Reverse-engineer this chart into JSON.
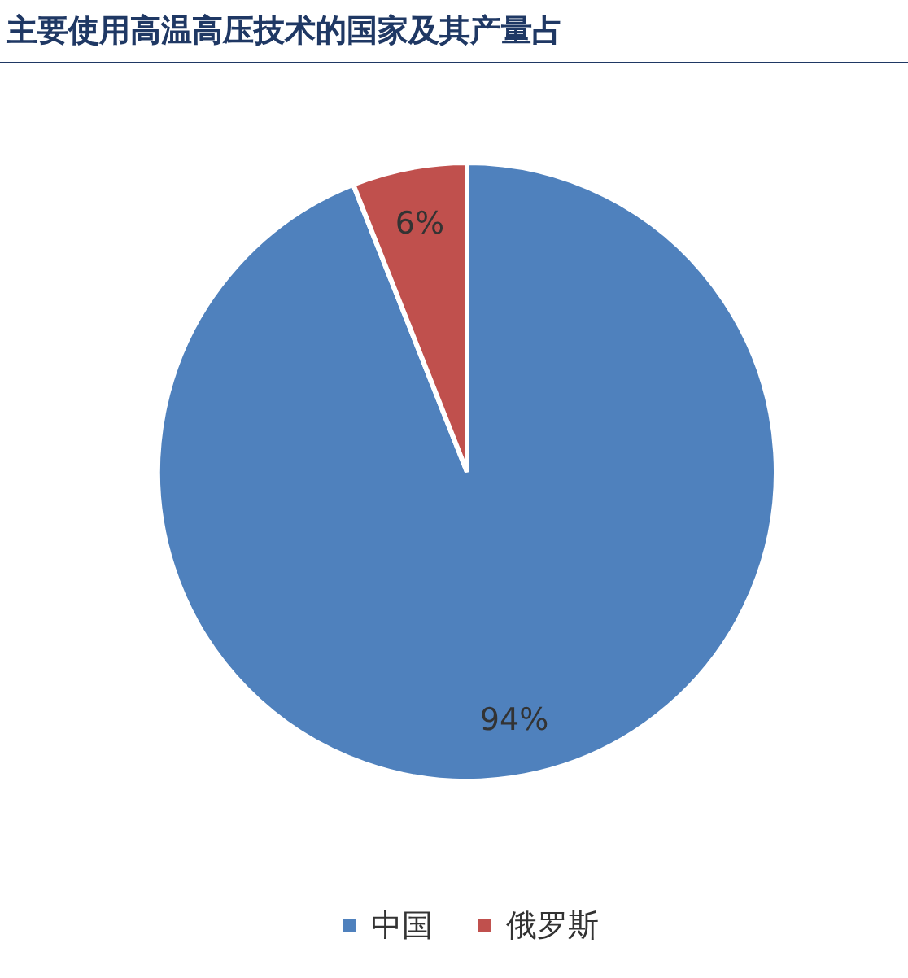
{
  "chart_data": {
    "type": "pie",
    "title": "主要使用高温高压技术的国家及其产量占",
    "categories": [
      "中国",
      "俄罗斯"
    ],
    "values": [
      94,
      6
    ],
    "colors": [
      "#4f81bd",
      "#c0504d"
    ],
    "value_labels": [
      "94%",
      "6%"
    ],
    "legend": "bottom"
  }
}
